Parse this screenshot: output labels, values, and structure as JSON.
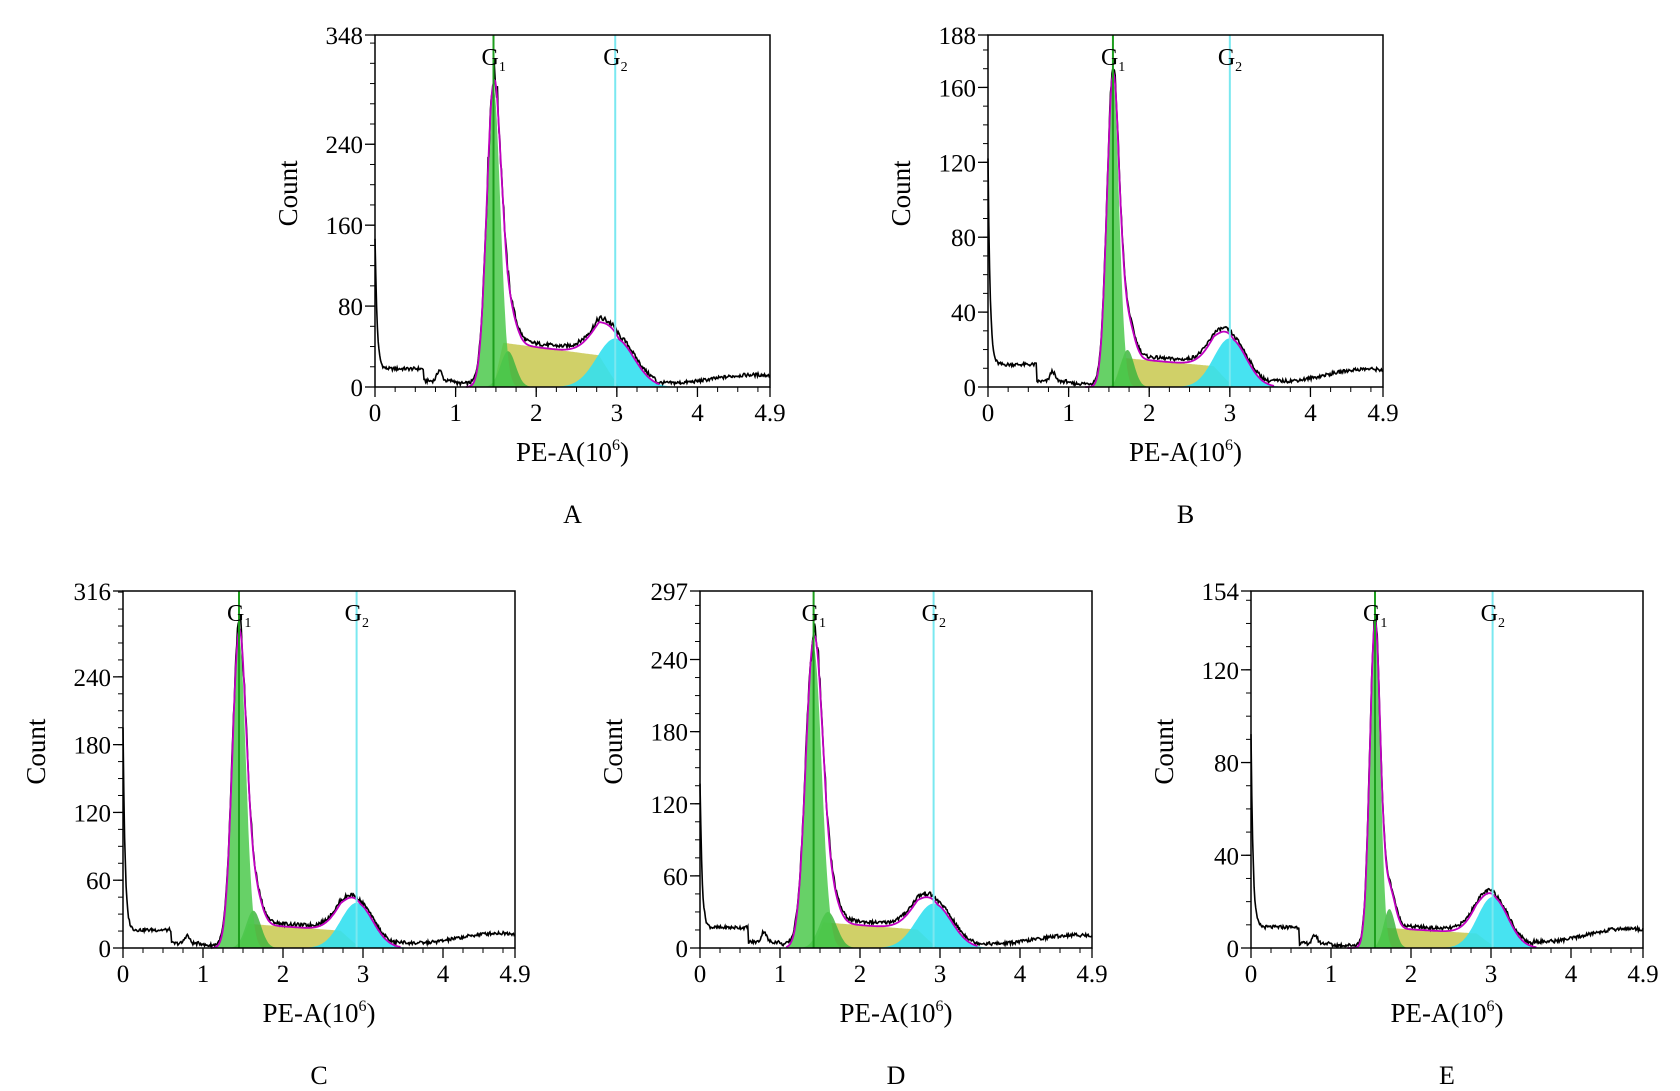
{
  "colors": {
    "g1_fill": "#4cc94c",
    "g1_line": "#1e9e1e",
    "s_fill": "#c8c84e",
    "g2_fill": "#33e0f0",
    "g2_line": "#7ae8f0",
    "fit_line": "#c000c0",
    "data_line": "#000000"
  },
  "chart_data": [
    {
      "panel": "A",
      "type": "area",
      "xlabel": "PE-A(10",
      "xlabel_sup": "6",
      "xlabel_close": ")",
      "ylabel": "Count",
      "xlim": [
        0,
        4.9
      ],
      "ylim": [
        0,
        348
      ],
      "xticks": [
        0,
        1,
        2,
        3,
        4,
        4.9
      ],
      "xtick_labels": [
        "0",
        "1",
        "2",
        "3",
        "4",
        "4.9"
      ],
      "yticks": [
        0,
        80,
        160,
        240,
        348
      ],
      "ytick_labels": [
        "0",
        "80",
        "160",
        "240",
        "348"
      ],
      "gates": [
        {
          "label": "G",
          "sub": "1",
          "x": 1.47
        },
        {
          "label": "G",
          "sub": "2",
          "x": 2.98
        }
      ],
      "g1": {
        "center": 1.47,
        "height": 295,
        "sigma": 0.085
      },
      "s": {
        "height": 45,
        "x_from": 1.47,
        "x_to": 2.98
      },
      "g2": {
        "center": 2.98,
        "height": 48,
        "sigma": 0.23
      },
      "debris": {
        "height": 145,
        "tail": 12
      },
      "background": 6,
      "tail_level": 10
    },
    {
      "panel": "B",
      "type": "area",
      "xlabel": "PE-A(10",
      "xlabel_sup": "6",
      "xlabel_close": ")",
      "ylabel": "Count",
      "xlim": [
        0,
        4.9
      ],
      "ylim": [
        0,
        188
      ],
      "xticks": [
        0,
        1,
        2,
        3,
        4,
        4.9
      ],
      "xtick_labels": [
        "0",
        "1",
        "2",
        "3",
        "4",
        "4.9"
      ],
      "yticks": [
        0,
        40,
        80,
        120,
        160,
        188
      ],
      "ytick_labels": [
        "0",
        "40",
        "80",
        "120",
        "160",
        "188"
      ],
      "gates": [
        {
          "label": "G",
          "sub": "1",
          "x": 1.55
        },
        {
          "label": "G",
          "sub": "2",
          "x": 3.0
        }
      ],
      "g1": {
        "center": 1.55,
        "height": 165,
        "sigma": 0.075
      },
      "s": {
        "height": 16,
        "x_from": 1.55,
        "x_to": 3.0
      },
      "g2": {
        "center": 3.0,
        "height": 26,
        "sigma": 0.2
      },
      "debris": {
        "height": 122,
        "tail": 9
      },
      "background": 3,
      "tail_level": 8
    },
    {
      "panel": "C",
      "type": "area",
      "xlabel": "PE-A(10",
      "xlabel_sup": "6",
      "xlabel_close": ")",
      "ylabel": "Count",
      "xlim": [
        0,
        4.9
      ],
      "ylim": [
        0,
        316
      ],
      "xticks": [
        0,
        1,
        2,
        3,
        4,
        4.9
      ],
      "xtick_labels": [
        "0",
        "1",
        "2",
        "3",
        "4",
        "4.9"
      ],
      "yticks": [
        0,
        60,
        120,
        180,
        240,
        316
      ],
      "ytick_labels": [
        "0",
        "60",
        "120",
        "180",
        "240",
        "316"
      ],
      "gates": [
        {
          "label": "G",
          "sub": "1",
          "x": 1.45
        },
        {
          "label": "G",
          "sub": "2",
          "x": 2.92
        }
      ],
      "g1": {
        "center": 1.45,
        "height": 275,
        "sigma": 0.085
      },
      "s": {
        "height": 22,
        "x_from": 1.45,
        "x_to": 2.92
      },
      "g2": {
        "center": 2.92,
        "height": 40,
        "sigma": 0.2
      },
      "debris": {
        "height": 195,
        "tail": 12
      },
      "background": 4,
      "tail_level": 11
    },
    {
      "panel": "D",
      "type": "area",
      "xlabel": "PE-A(10",
      "xlabel_sup": "6",
      "xlabel_close": ")",
      "ylabel": "Count",
      "xlim": [
        0,
        4.9
      ],
      "ylim": [
        0,
        297
      ],
      "xticks": [
        0,
        1,
        2,
        3,
        4,
        4.9
      ],
      "xtick_labels": [
        "0",
        "1",
        "2",
        "3",
        "4",
        "4.9"
      ],
      "yticks": [
        0,
        60,
        120,
        180,
        240,
        297
      ],
      "ytick_labels": [
        "0",
        "60",
        "120",
        "180",
        "240",
        "297"
      ],
      "gates": [
        {
          "label": "G",
          "sub": "1",
          "x": 1.42
        },
        {
          "label": "G",
          "sub": "2",
          "x": 2.92
        }
      ],
      "g1": {
        "center": 1.42,
        "height": 250,
        "sigma": 0.1
      },
      "s": {
        "height": 22,
        "x_from": 1.42,
        "x_to": 2.92
      },
      "g2": {
        "center": 2.92,
        "height": 37,
        "sigma": 0.22
      },
      "debris": {
        "height": 135,
        "tail": 12
      },
      "background": 5,
      "tail_level": 9
    },
    {
      "panel": "E",
      "type": "area",
      "xlabel": "PE-A(10",
      "xlabel_sup": "6",
      "xlabel_close": ")",
      "ylabel": "Count",
      "xlim": [
        0,
        4.9
      ],
      "ylim": [
        0,
        154
      ],
      "xticks": [
        0,
        1,
        2,
        3,
        4,
        4.9
      ],
      "xtick_labels": [
        "0",
        "1",
        "2",
        "3",
        "4",
        "4.9"
      ],
      "yticks": [
        0,
        40,
        80,
        120,
        154
      ],
      "ytick_labels": [
        "0",
        "40",
        "80",
        "120",
        "154"
      ],
      "gates": [
        {
          "label": "G",
          "sub": "1",
          "x": 1.55
        },
        {
          "label": "G",
          "sub": "2",
          "x": 3.02
        }
      ],
      "g1": {
        "center": 1.55,
        "height": 140,
        "sigma": 0.065
      },
      "s": {
        "height": 9,
        "x_from": 1.55,
        "x_to": 3.02
      },
      "g2": {
        "center": 3.02,
        "height": 22,
        "sigma": 0.19
      },
      "debris": {
        "height": 92,
        "tail": 7
      },
      "background": 2,
      "tail_level": 7
    }
  ]
}
